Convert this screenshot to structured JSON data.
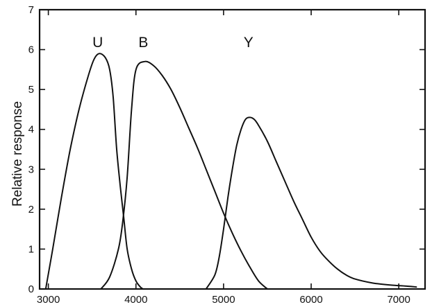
{
  "chart_data": {
    "type": "line",
    "title": "",
    "xlabel": "",
    "ylabel": "Relative response",
    "xlim": [
      2900,
      7300
    ],
    "ylim": [
      0,
      7
    ],
    "x_ticks": [
      3000,
      4000,
      5000,
      6000,
      7000
    ],
    "y_ticks": [
      0,
      1,
      2,
      3,
      4,
      5,
      6,
      7
    ],
    "grid": false,
    "legend": "none; series labelled directly above each peak",
    "line_color": "#111111",
    "series": [
      {
        "name": "U",
        "x": [
          2970,
          3050,
          3150,
          3250,
          3350,
          3450,
          3520,
          3580,
          3650,
          3700,
          3740,
          3780,
          3820,
          3860,
          3900,
          3950,
          4000,
          4050,
          4080
        ],
        "y": [
          0,
          1.0,
          2.3,
          3.5,
          4.5,
          5.3,
          5.75,
          5.9,
          5.8,
          5.5,
          4.8,
          3.5,
          2.6,
          1.8,
          1.0,
          0.5,
          0.2,
          0.05,
          0
        ]
      },
      {
        "name": "B",
        "x": [
          3600,
          3700,
          3800,
          3850,
          3900,
          3950,
          4000,
          4100,
          4200,
          4300,
          4400,
          4500,
          4600,
          4700,
          4800,
          4900,
          5000,
          5100,
          5200,
          5300,
          5400,
          5500
        ],
        "y": [
          0,
          0.3,
          1.0,
          1.7,
          2.8,
          4.5,
          5.5,
          5.7,
          5.6,
          5.35,
          5.0,
          4.55,
          4.05,
          3.55,
          3.0,
          2.45,
          1.9,
          1.4,
          0.95,
          0.55,
          0.2,
          0
        ]
      },
      {
        "name": "Y",
        "x": [
          4800,
          4900,
          4950,
          5000,
          5050,
          5100,
          5150,
          5200,
          5250,
          5300,
          5350,
          5400,
          5500,
          5600,
          5700,
          5800,
          5900,
          6000,
          6100,
          6200,
          6300,
          6400,
          6500,
          6700,
          6900,
          7100,
          7200
        ],
        "y": [
          0,
          0.35,
          0.8,
          1.5,
          2.3,
          3.0,
          3.6,
          4.0,
          4.25,
          4.3,
          4.25,
          4.1,
          3.7,
          3.2,
          2.7,
          2.2,
          1.75,
          1.3,
          0.95,
          0.7,
          0.5,
          0.35,
          0.25,
          0.15,
          0.1,
          0.07,
          0.05
        ]
      }
    ]
  }
}
